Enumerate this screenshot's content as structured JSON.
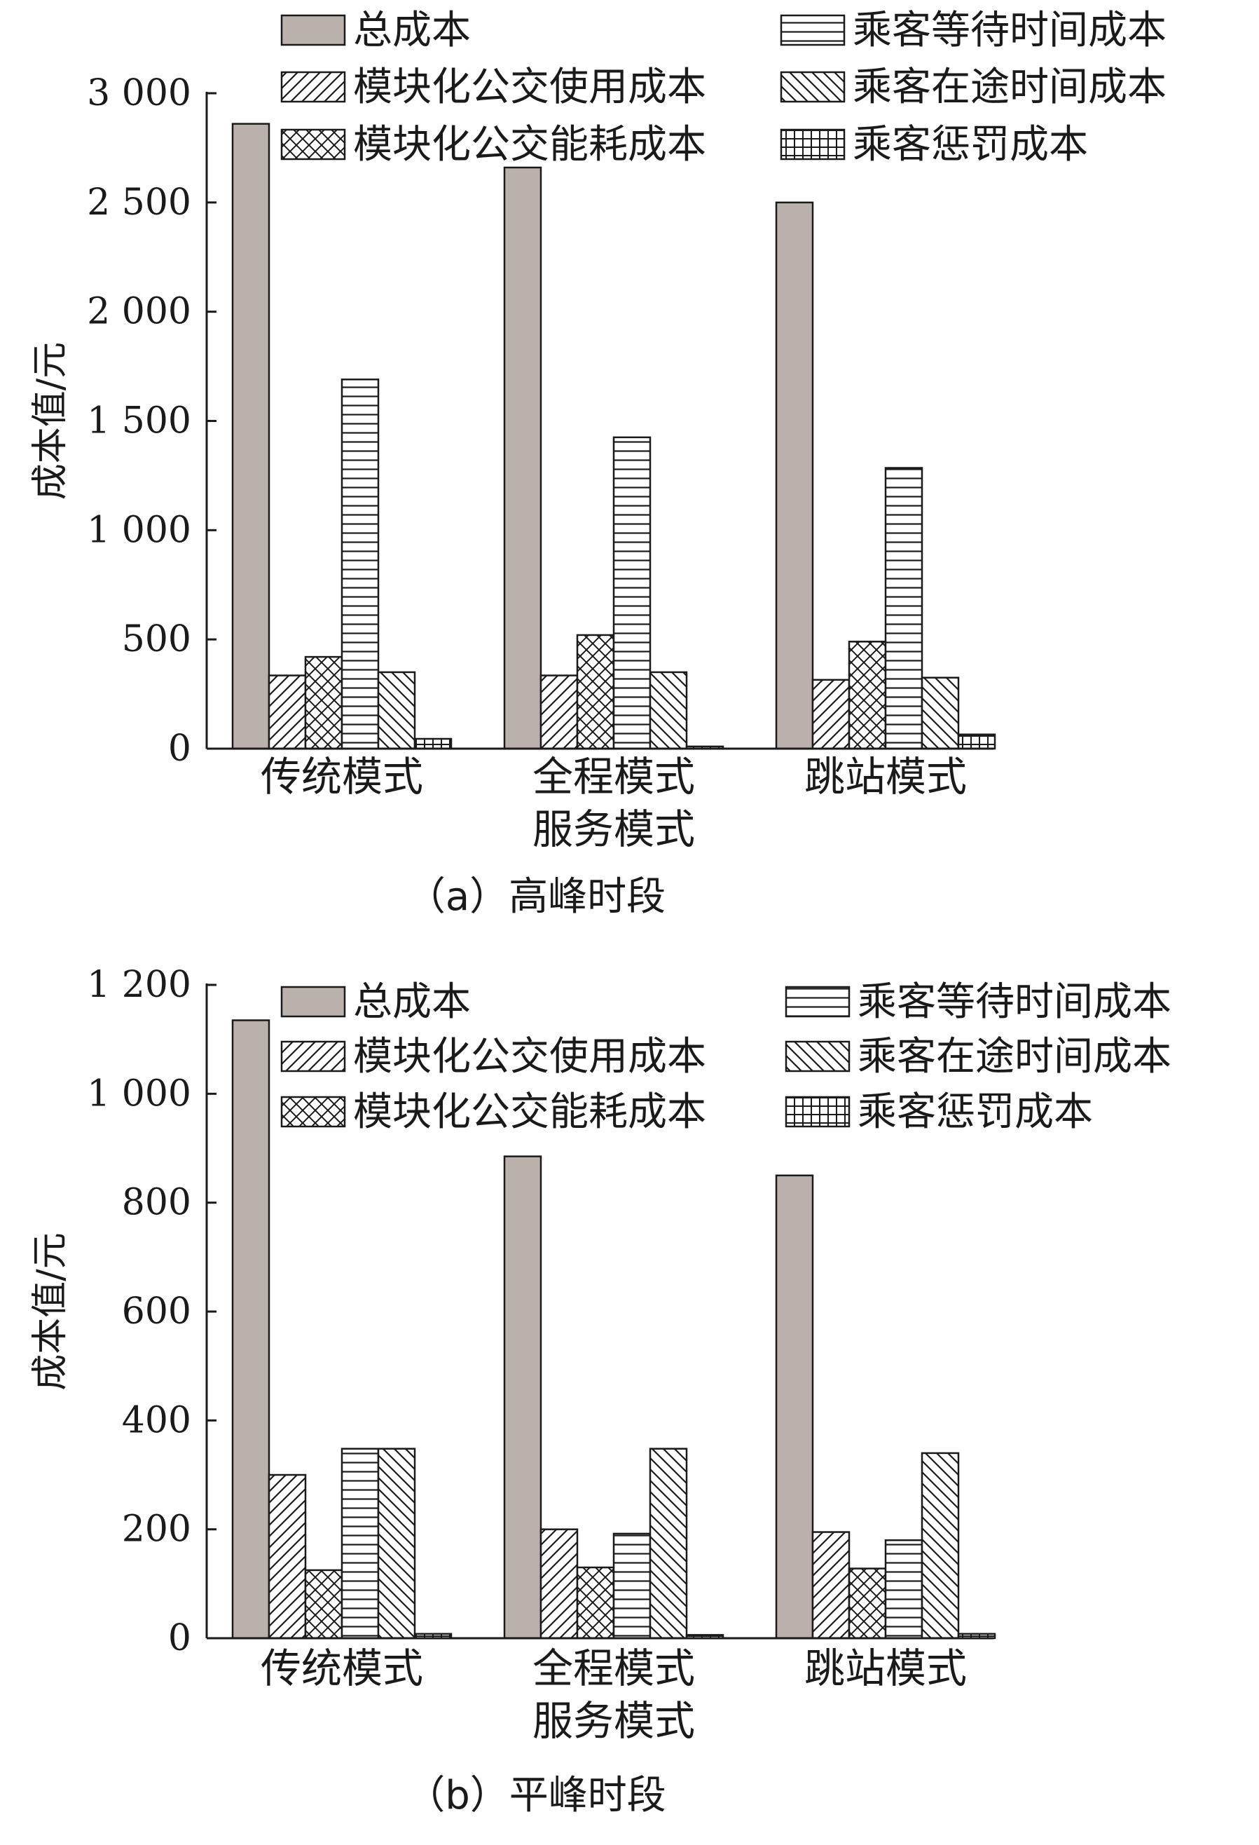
{
  "legend_items": [
    {
      "key": "total",
      "label": "总成本",
      "pattern": "solid",
      "color": "#bab1ad"
    },
    {
      "key": "usage",
      "label": "模块化公交使用成本",
      "pattern": "diag-fwd"
    },
    {
      "key": "energy",
      "label": "模块化公交能耗成本",
      "pattern": "crosshatch"
    },
    {
      "key": "wait",
      "label": "乘客等待时间成本",
      "pattern": "horizontal"
    },
    {
      "key": "transit",
      "label": "乘客在途时间成本",
      "pattern": "diag-back"
    },
    {
      "key": "penalty",
      "label": "乘客惩罚成本",
      "pattern": "grid"
    }
  ],
  "chart_data": [
    {
      "type": "bar",
      "title": "",
      "caption": "（a）高峰时段",
      "xlabel": "",
      "ylabel": "成本值/元",
      "ylim": [
        0,
        3000
      ],
      "yticks": [
        0,
        500,
        1000,
        1500,
        2000,
        2500,
        3000
      ],
      "ytick_labels": [
        "0",
        "500",
        "1 000",
        "1 500",
        "2 000",
        "2 500",
        "3 000"
      ],
      "categories": [
        [
          "传统模式"
        ],
        [
          "全程模式",
          "服务模式"
        ],
        [
          "跳站模式"
        ]
      ],
      "legend_position": "top",
      "grid": false,
      "series": [
        {
          "name": "总成本",
          "values": [
            2860,
            2660,
            2500
          ]
        },
        {
          "name": "模块化公交使用成本",
          "values": [
            335,
            335,
            315
          ]
        },
        {
          "name": "模块化公交能耗成本",
          "values": [
            420,
            520,
            490
          ]
        },
        {
          "name": "乘客等待时间成本",
          "values": [
            1690,
            1425,
            1285
          ]
        },
        {
          "name": "乘客在途时间成本",
          "values": [
            350,
            350,
            325
          ]
        },
        {
          "name": "乘客惩罚成本",
          "values": [
            45,
            10,
            65
          ]
        }
      ]
    },
    {
      "type": "bar",
      "title": "",
      "caption": "（b）平峰时段",
      "xlabel": "",
      "ylabel": "成本值/元",
      "ylim": [
        0,
        1200
      ],
      "yticks": [
        0,
        200,
        400,
        600,
        800,
        1000,
        1200
      ],
      "ytick_labels": [
        "0",
        "200",
        "400",
        "600",
        "800",
        "1 000",
        "1 200"
      ],
      "categories": [
        [
          "传统模式"
        ],
        [
          "全程模式",
          "服务模式"
        ],
        [
          "跳站模式"
        ]
      ],
      "legend_position": "top",
      "grid": false,
      "series": [
        {
          "name": "总成本",
          "values": [
            1135,
            885,
            850
          ]
        },
        {
          "name": "模块化公交使用成本",
          "values": [
            300,
            200,
            195
          ]
        },
        {
          "name": "模块化公交能耗成本",
          "values": [
            125,
            130,
            128
          ]
        },
        {
          "name": "乘客等待时间成本",
          "values": [
            348,
            192,
            180
          ]
        },
        {
          "name": "乘客在途时间成本",
          "values": [
            348,
            348,
            340
          ]
        },
        {
          "name": "乘客惩罚成本",
          "values": [
            8,
            6,
            8
          ]
        }
      ]
    }
  ]
}
